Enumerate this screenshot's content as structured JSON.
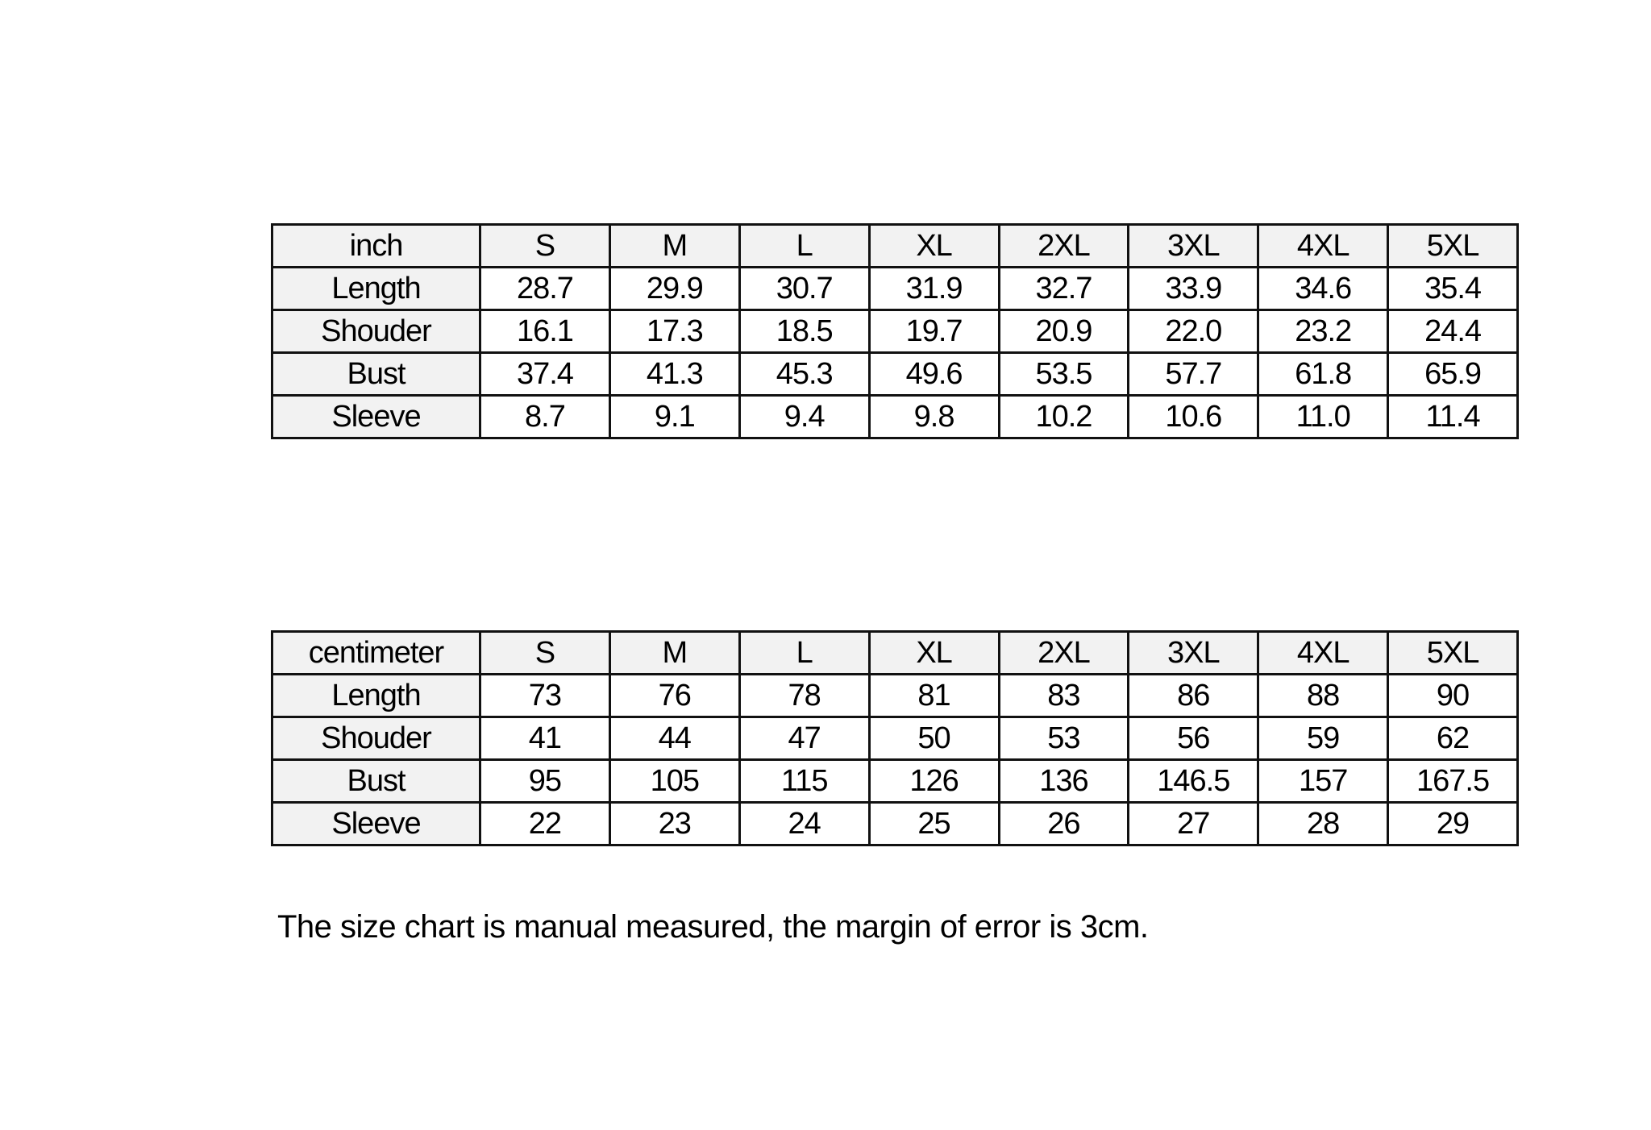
{
  "tables": [
    {
      "unit": "inch",
      "sizes": [
        "S",
        "M",
        "L",
        "XL",
        "2XL",
        "3XL",
        "4XL",
        "5XL"
      ],
      "rows": [
        {
          "label": "Length",
          "values": [
            "28.7",
            "29.9",
            "30.7",
            "31.9",
            "32.7",
            "33.9",
            "34.6",
            "35.4"
          ]
        },
        {
          "label": "Shouder",
          "values": [
            "16.1",
            "17.3",
            "18.5",
            "19.7",
            "20.9",
            "22.0",
            "23.2",
            "24.4"
          ]
        },
        {
          "label": "Bust",
          "values": [
            "37.4",
            "41.3",
            "45.3",
            "49.6",
            "53.5",
            "57.7",
            "61.8",
            "65.9"
          ]
        },
        {
          "label": "Sleeve",
          "values": [
            "8.7",
            "9.1",
            "9.4",
            "9.8",
            "10.2",
            "10.6",
            "11.0",
            "11.4"
          ]
        }
      ]
    },
    {
      "unit": "centimeter",
      "sizes": [
        "S",
        "M",
        "L",
        "XL",
        "2XL",
        "3XL",
        "4XL",
        "5XL"
      ],
      "rows": [
        {
          "label": "Length",
          "values": [
            "73",
            "76",
            "78",
            "81",
            "83",
            "86",
            "88",
            "90"
          ]
        },
        {
          "label": "Shouder",
          "values": [
            "41",
            "44",
            "47",
            "50",
            "53",
            "56",
            "59",
            "62"
          ]
        },
        {
          "label": "Bust",
          "values": [
            "95",
            "105",
            "115",
            "126",
            "136",
            "146.5",
            "157",
            "167.5"
          ]
        },
        {
          "label": "Sleeve",
          "values": [
            "22",
            "23",
            "24",
            "25",
            "26",
            "27",
            "28",
            "29"
          ]
        }
      ]
    }
  ],
  "note": "The size chart is manual measured, the margin of error is 3cm.",
  "colors": {
    "header_bg": "#f2f2f2",
    "border": "#111111"
  }
}
